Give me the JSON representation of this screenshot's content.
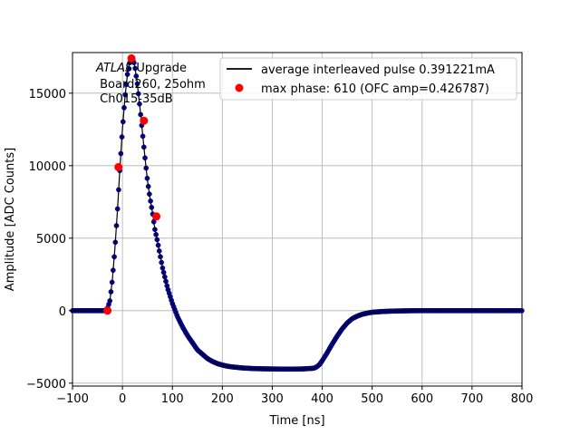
{
  "chart_data": {
    "type": "scatter",
    "xlabel": "Time [ns]",
    "ylabel": "Amplitude [ADC Counts]",
    "xlim": [
      -100,
      800
    ],
    "ylim": [
      -5200,
      17800
    ],
    "xticks": [
      -100,
      0,
      100,
      200,
      300,
      400,
      500,
      600,
      700,
      800
    ],
    "yticks": [
      -5000,
      0,
      5000,
      10000,
      15000
    ],
    "grid": true,
    "annotation": {
      "line1_italic": "ATLAS",
      "line1_rest": " Upgrade",
      "line2": " Board260, 25ohm",
      "line3": " Ch015-35dB"
    },
    "legend_position": "top-right",
    "series": [
      {
        "name": "average interleaved pulse 0.391221mA",
        "style": "line",
        "color": "#000000",
        "marker_color": "#0000cc",
        "marker_edge": "#000033",
        "x": [
          -100,
          -80,
          -60,
          -40,
          -35,
          -30,
          -25,
          -20,
          -15,
          -10,
          -5,
          0,
          5,
          10,
          15,
          18,
          22,
          25,
          30,
          35,
          40,
          45,
          50,
          55,
          60,
          65,
          70,
          80,
          90,
          100,
          110,
          120,
          130,
          140,
          150,
          160,
          170,
          180,
          190,
          200,
          210,
          220,
          240,
          260,
          280,
          300,
          320,
          340,
          360,
          370,
          380,
          385,
          390,
          395,
          400,
          410,
          420,
          430,
          440,
          450,
          460,
          470,
          480,
          490,
          500,
          520,
          540,
          560,
          580,
          600,
          620,
          650,
          680,
          700,
          750,
          800
        ],
        "y": [
          0,
          0,
          0,
          0,
          0,
          150,
          700,
          2200,
          4300,
          6900,
          9900,
          12500,
          14700,
          16300,
          17200,
          17400,
          17300,
          16800,
          15600,
          14000,
          12300,
          10600,
          9000,
          7800,
          6800,
          5600,
          4800,
          3000,
          1600,
          500,
          -400,
          -1100,
          -1700,
          -2200,
          -2700,
          -3000,
          -3300,
          -3500,
          -3650,
          -3750,
          -3830,
          -3880,
          -3950,
          -3990,
          -4010,
          -4020,
          -4030,
          -4030,
          -4020,
          -4000,
          -3980,
          -3950,
          -3850,
          -3700,
          -3450,
          -2900,
          -2300,
          -1750,
          -1250,
          -850,
          -550,
          -380,
          -250,
          -170,
          -110,
          -60,
          -30,
          -15,
          -5,
          0,
          0,
          0,
          0,
          0,
          0,
          0
        ]
      },
      {
        "name": "max phase: 610 (OFC amp=0.426787)",
        "style": "points",
        "color": "#ff0000",
        "x": [
          -30,
          -8,
          18,
          43,
          68
        ],
        "y": [
          0,
          9900,
          17400,
          13100,
          6500
        ]
      }
    ]
  }
}
